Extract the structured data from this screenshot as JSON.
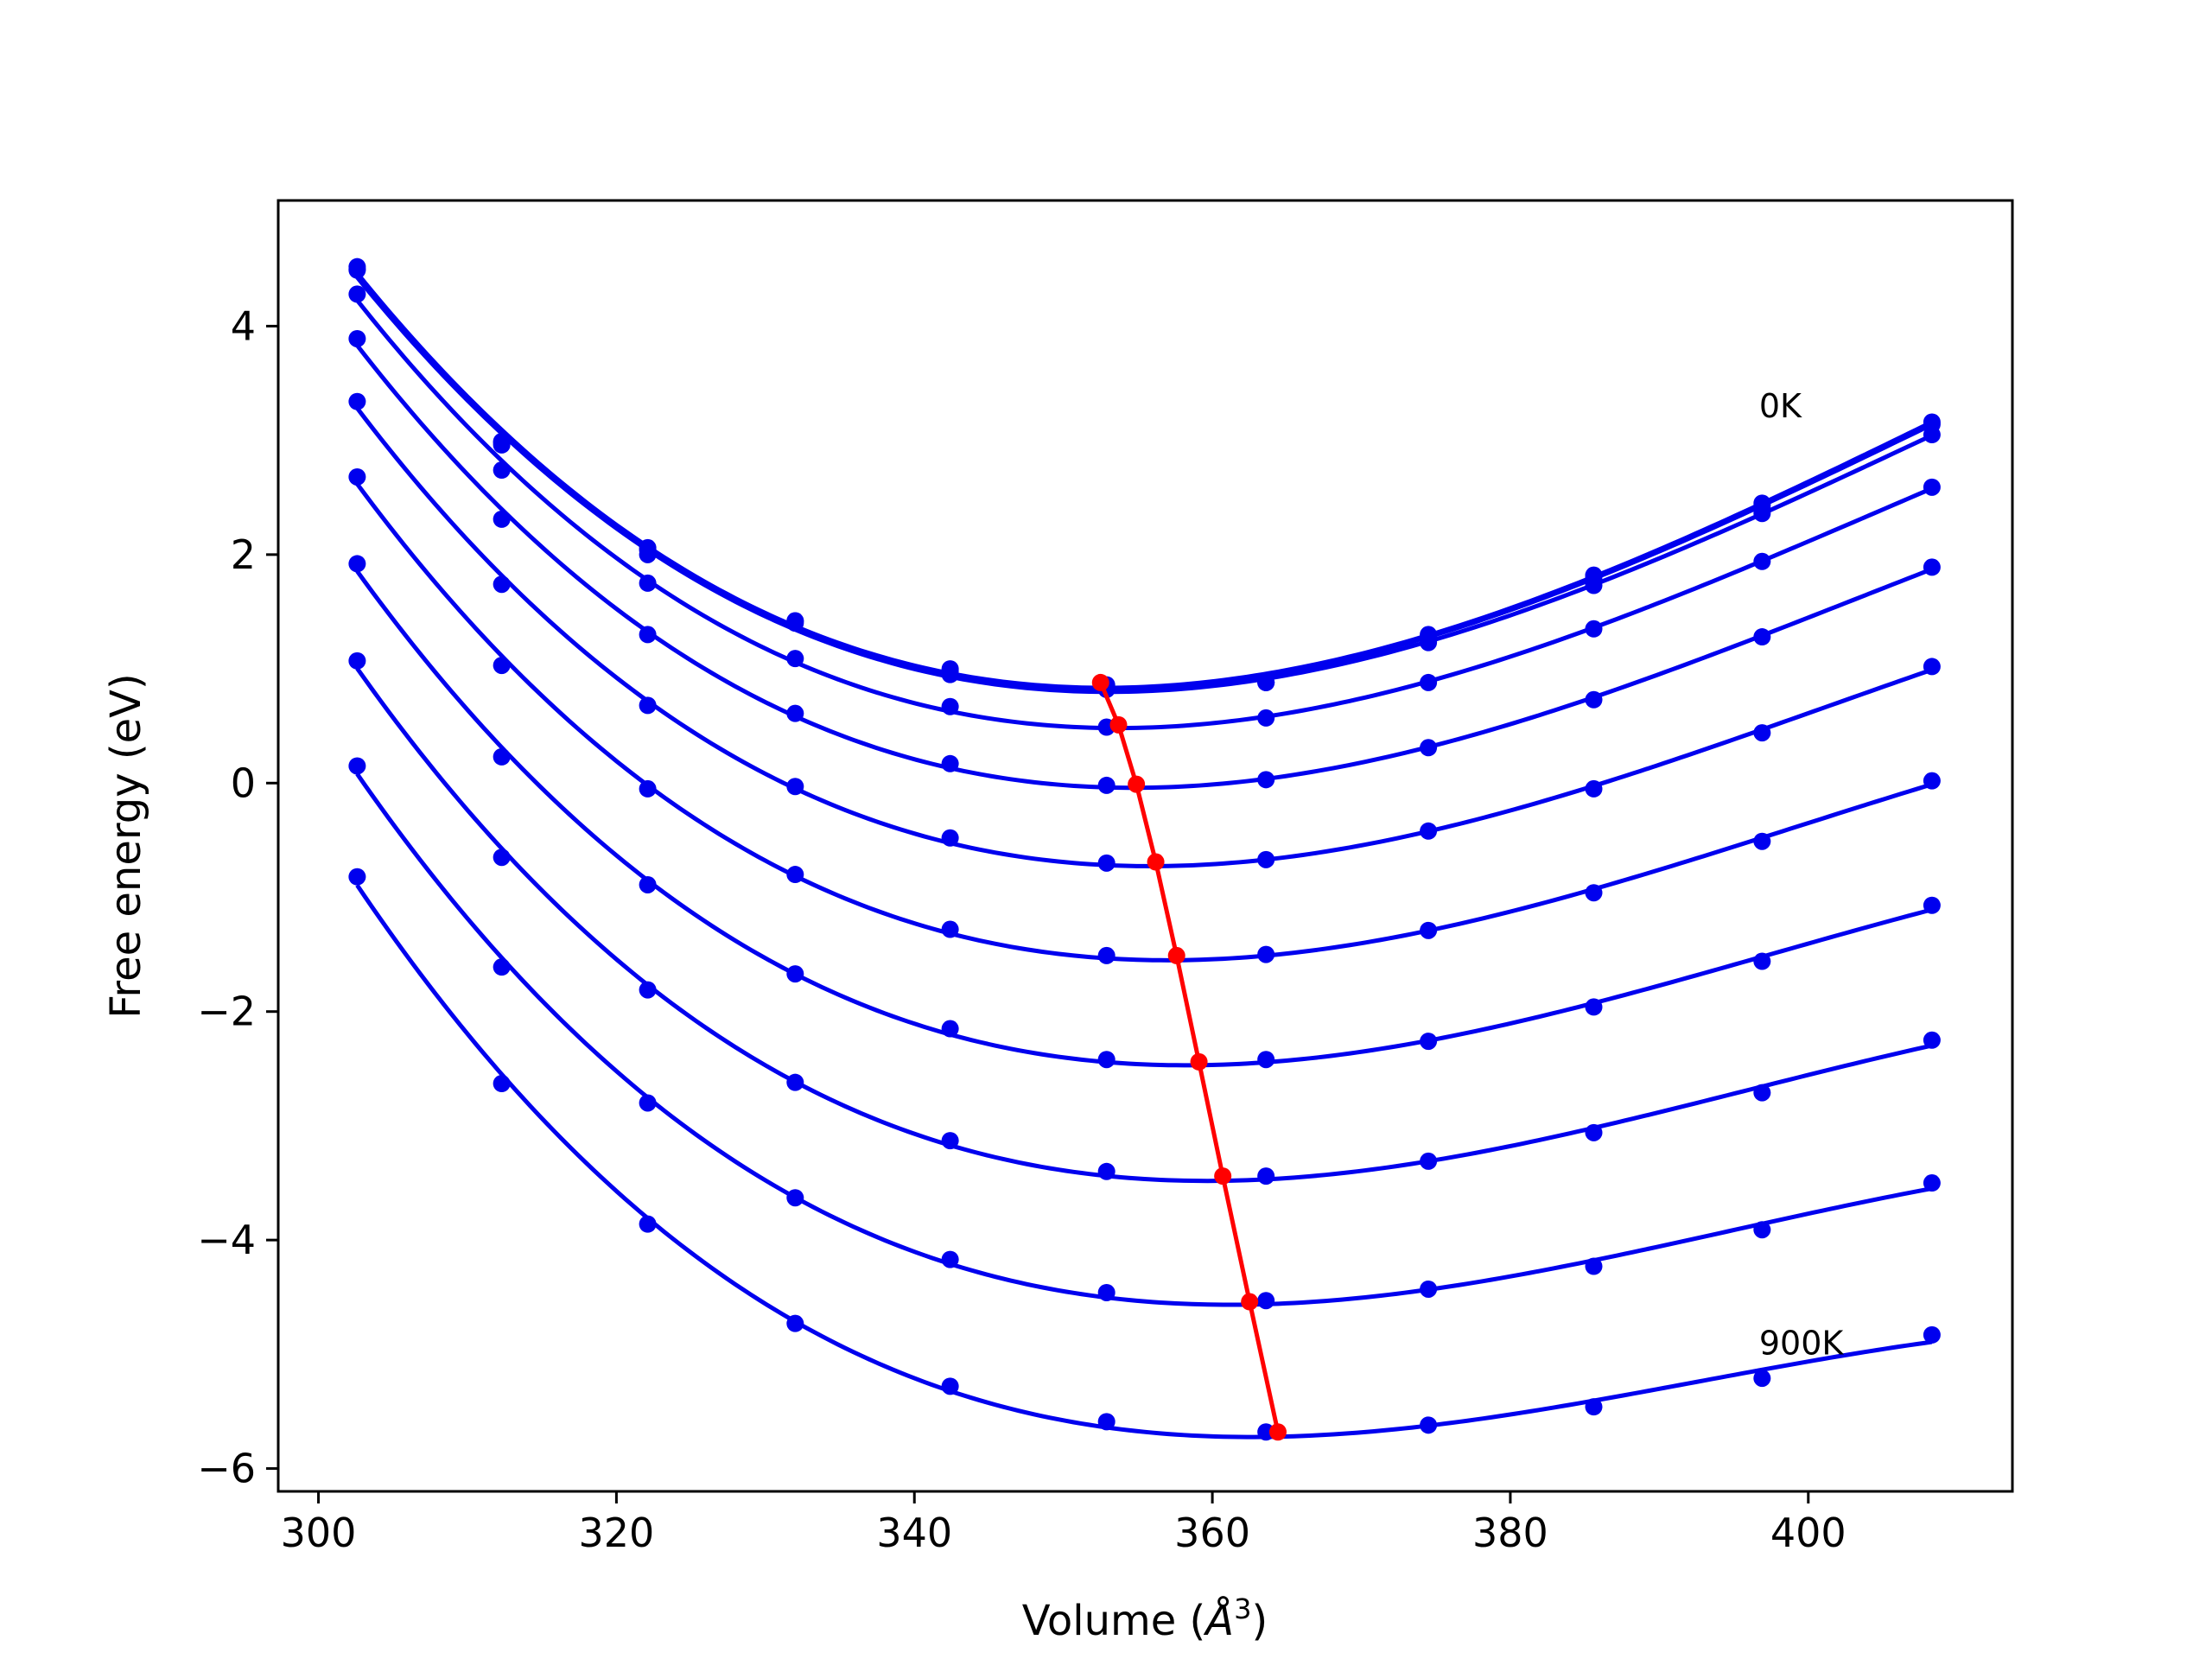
{
  "chart_data": {
    "type": "line",
    "title": "",
    "xlabel": "Volume (Å³)",
    "xlabel_prefix": "Volume (",
    "xlabel_italic": "Å",
    "xlabel_sup": "3",
    "xlabel_suffix": ")",
    "ylabel": "Free energy (eV)",
    "xlim": [
      297.3,
      413.7
    ],
    "ylim": [
      -6.2,
      5.1
    ],
    "xticks": [
      300,
      320,
      340,
      360,
      380,
      400
    ],
    "yticks": [
      -6,
      -4,
      -2,
      0,
      2,
      4
    ],
    "ytick_labels": [
      "−6",
      "−4",
      "−2",
      "0",
      "2",
      "4"
    ],
    "grid": false,
    "legend": "none",
    "annotations": [
      {
        "text": "0K",
        "x": 396.7,
        "y": 3.2
      },
      {
        "text": "900K",
        "x": 396.7,
        "y": -5.0
      }
    ],
    "curve_color": "#0000ee",
    "min_color": "#ff0000",
    "volumes": [
      302.6,
      312.3,
      322.1,
      332.0,
      342.4,
      352.9,
      363.6,
      374.5,
      385.6,
      396.9,
      408.3
    ],
    "series": [
      {
        "values": [
          4.52,
          2.99,
          2.06,
          1.42,
          1.0,
          0.86,
          0.88,
          1.3,
          1.82,
          2.45,
          3.16
        ]
      },
      {
        "values": [
          4.5,
          2.98,
          2.04,
          1.4,
          0.98,
          0.84,
          0.88,
          1.28,
          1.8,
          2.43,
          3.14
        ]
      },
      {
        "values": [
          4.49,
          2.96,
          2.0,
          1.42,
          0.95,
          0.82,
          0.88,
          1.23,
          1.73,
          2.36,
          3.05
        ]
      },
      {
        "values": [
          4.28,
          2.74,
          1.75,
          1.09,
          0.67,
          0.49,
          0.57,
          0.88,
          1.35,
          1.94,
          2.59
        ]
      },
      {
        "values": [
          3.89,
          2.31,
          1.3,
          0.61,
          0.17,
          -0.02,
          0.03,
          0.31,
          0.73,
          1.28,
          1.89
        ]
      },
      {
        "values": [
          3.34,
          1.74,
          0.68,
          -0.03,
          -0.48,
          -0.7,
          -0.67,
          -0.42,
          -0.05,
          0.44,
          1.02
        ]
      },
      {
        "values": [
          2.68,
          1.03,
          -0.05,
          -0.8,
          -1.28,
          -1.51,
          -1.5,
          -1.29,
          -0.96,
          -0.51,
          0.02
        ]
      },
      {
        "values": [
          1.92,
          0.23,
          -0.89,
          -1.67,
          -2.15,
          -2.42,
          -2.42,
          -2.26,
          -1.96,
          -1.56,
          -1.07
        ]
      },
      {
        "values": [
          1.07,
          -0.65,
          -1.81,
          -2.62,
          -3.13,
          -3.4,
          -3.44,
          -3.31,
          -3.06,
          -2.71,
          -2.25
        ]
      },
      {
        "values": [
          0.15,
          -1.61,
          -2.8,
          -3.63,
          -4.17,
          -4.46,
          -4.53,
          -4.43,
          -4.23,
          -3.91,
          -3.5
        ]
      },
      {
        "values": [
          -0.82,
          -2.63,
          -3.86,
          -4.73,
          -5.28,
          -5.59,
          -5.68,
          -5.62,
          -5.46,
          -5.21,
          -4.83
        ]
      }
    ],
    "minima": {
      "x": [
        352.5,
        353.7,
        354.9,
        356.2,
        357.6,
        359.1,
        360.7,
        362.5,
        364.4
      ],
      "y": [
        0.88,
        0.51,
        -0.01,
        -0.69,
        -1.51,
        -2.44,
        -3.44,
        -4.54,
        -5.68
      ]
    }
  }
}
